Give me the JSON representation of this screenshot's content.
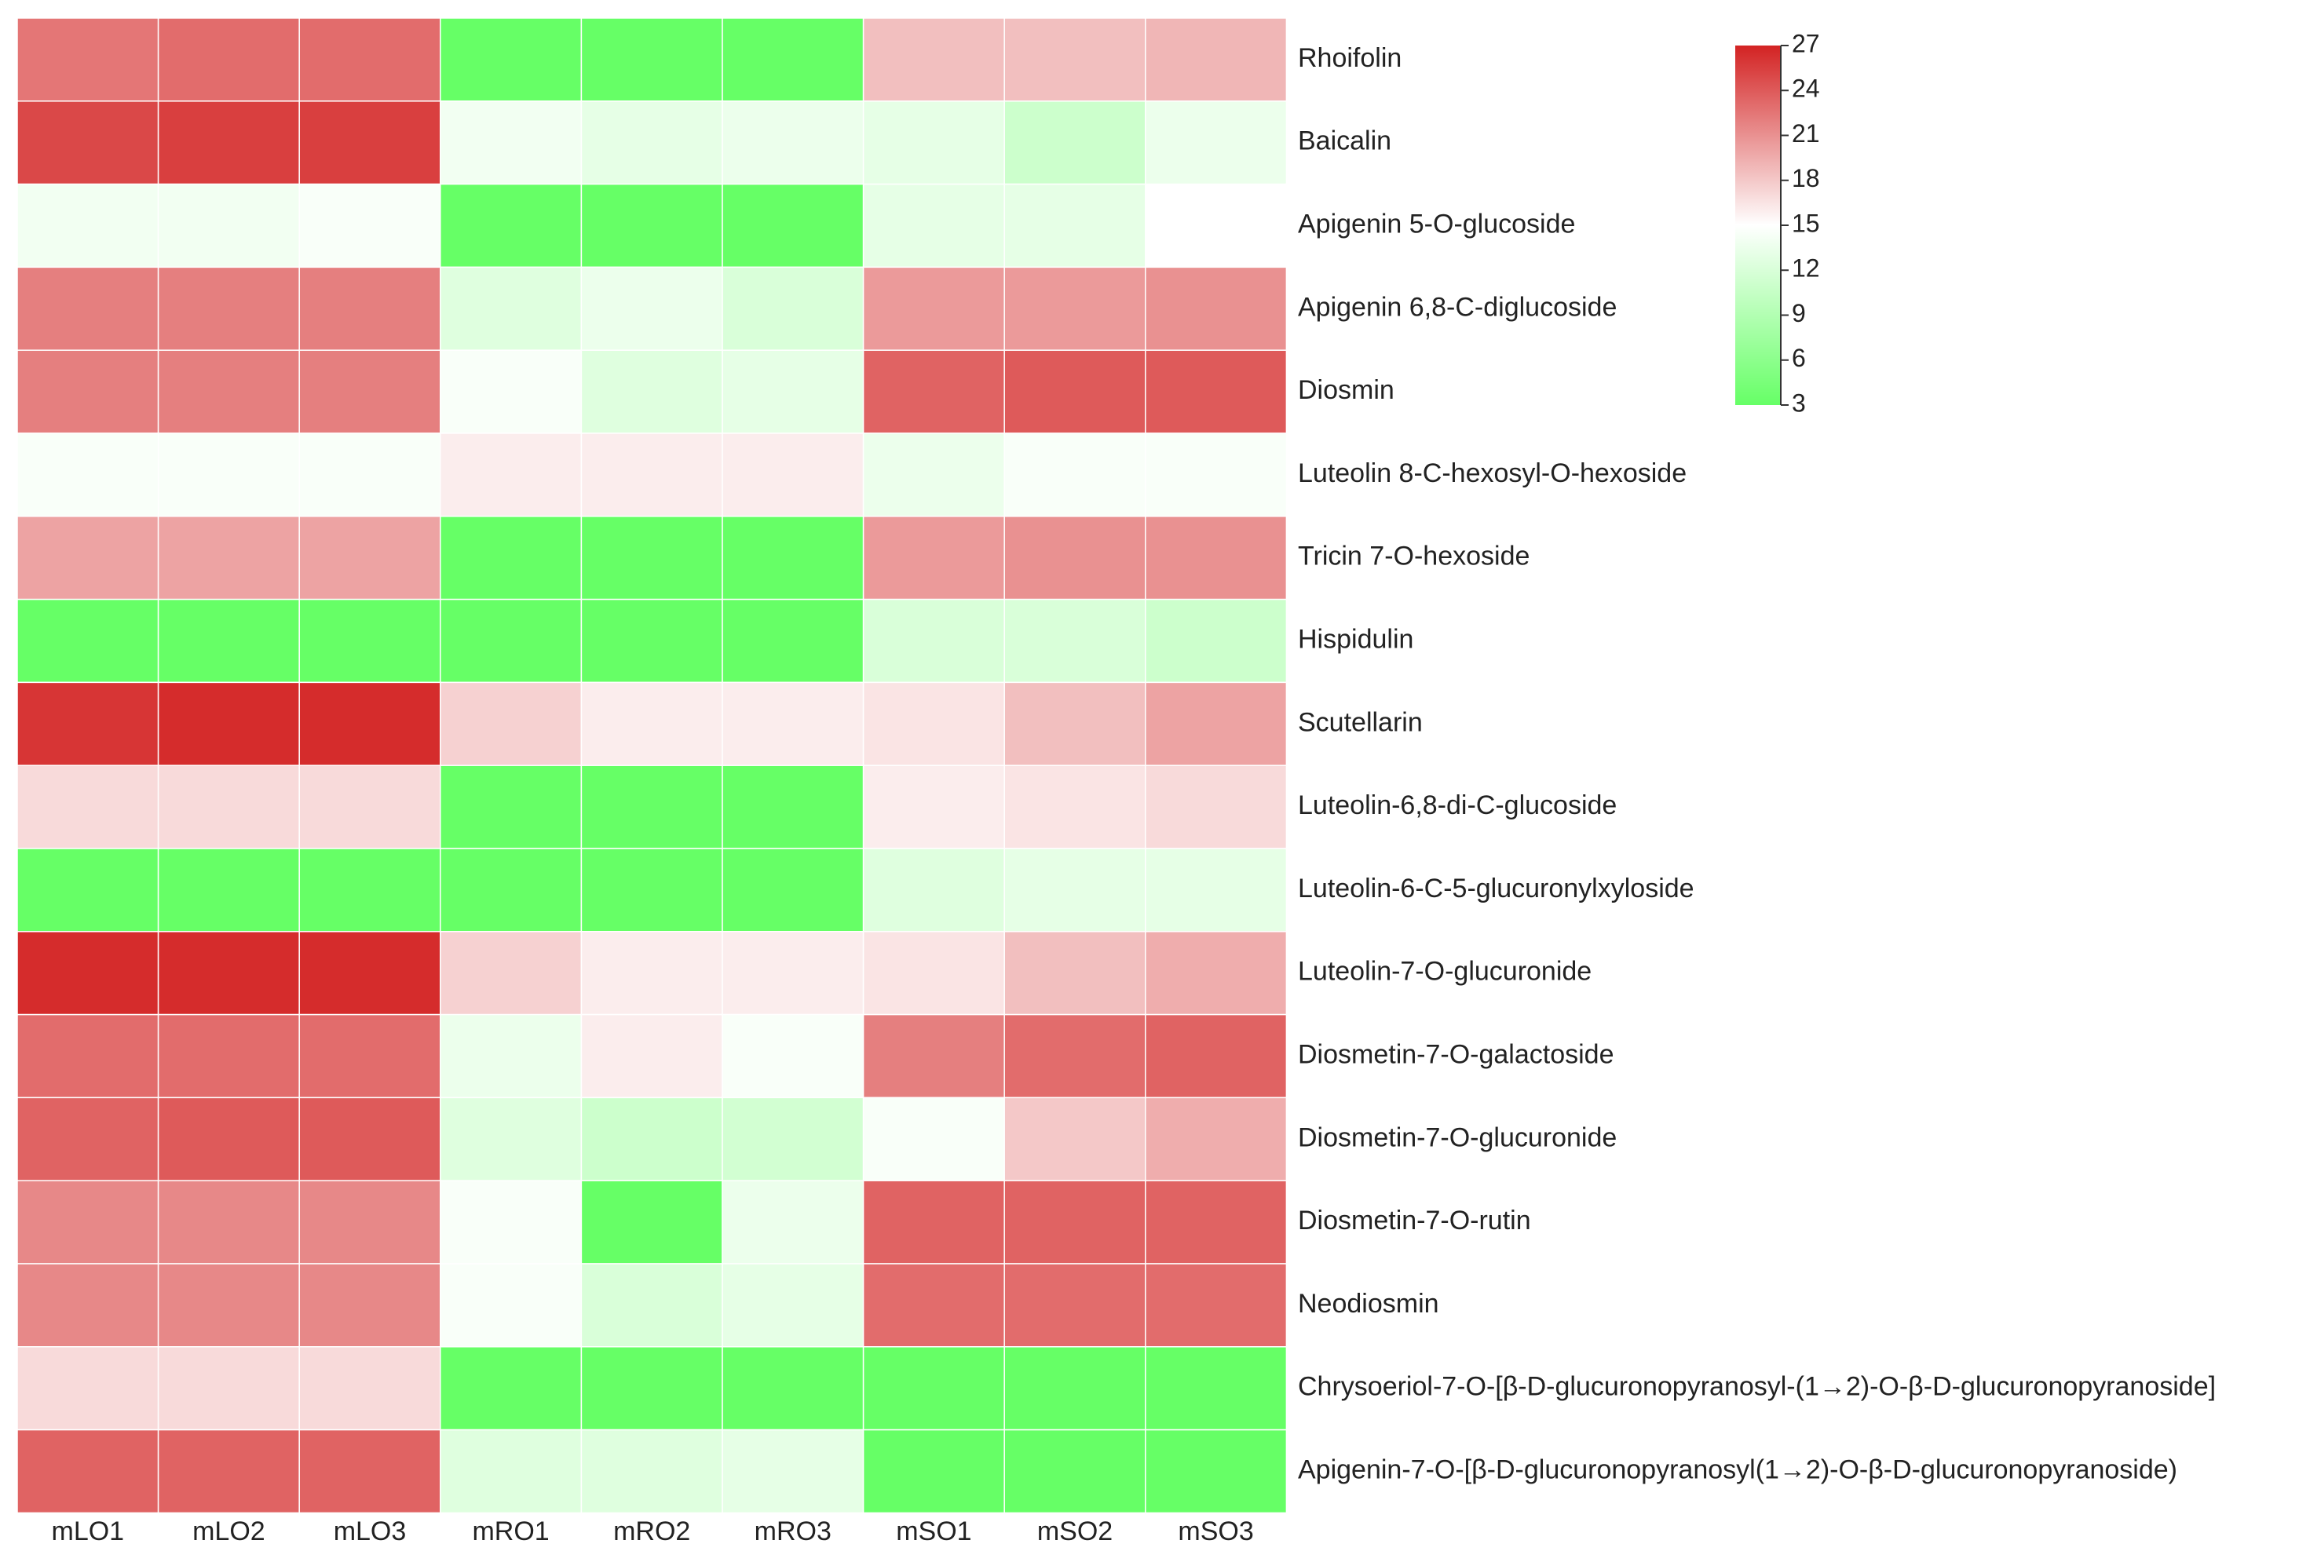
{
  "chart_data": {
    "type": "heatmap",
    "title": "",
    "columns": [
      "mLO1",
      "mLO2",
      "mLO3",
      "mRO1",
      "mRO2",
      "mRO3",
      "mSO1",
      "mSO2",
      "mSO3"
    ],
    "rows": [
      "Rhoifolin",
      "Baicalin",
      "Apigenin 5-O-glucoside",
      "Apigenin 6,8-C-diglucoside",
      "Diosmin",
      "Luteolin 8-C-hexosyl-O-hexoside",
      "Tricin 7-O-hexoside",
      "Hispidulin",
      "Scutellarin",
      "Luteolin-6,8-di-C-glucoside",
      "Luteolin-6-C-5-glucuronylxyloside",
      "Luteolin-7-O-glucuronide",
      "Diosmetin-7-O-galactoside",
      "Diosmetin-7-O-glucuronide",
      "Diosmetin-7-O-rutin",
      "Neodiosmin",
      "Chrysoeriol-7-O-[β-D-glucuronopyranosyl-(1→2)-O-β-D-glucuronopyranoside]",
      "Apigenin-7-O-[β-D-glucuronopyranosyl(1→2)-O-β-D-glucuronopyranoside)"
    ],
    "values": [
      [
        22.5,
        23.0,
        23.0,
        3,
        3,
        3,
        18.5,
        18.5,
        19.0
      ],
      [
        25.0,
        25.5,
        25.5,
        14.0,
        13.0,
        13.5,
        13.0,
        11.0,
        13.5
      ],
      [
        14.0,
        14.0,
        14.5,
        3,
        3,
        3,
        13.0,
        13.0,
        15.0
      ],
      [
        22.0,
        22.0,
        22.0,
        12.5,
        13.5,
        12.0,
        20.5,
        20.5,
        21.0
      ],
      [
        22.0,
        22.0,
        22.0,
        14.5,
        12.5,
        13.0,
        23.5,
        24.0,
        24.0
      ],
      [
        14.5,
        14.5,
        14.5,
        16.0,
        16.0,
        16.0,
        13.5,
        14.5,
        14.5
      ],
      [
        20.0,
        20.0,
        20.0,
        3,
        3,
        3,
        20.5,
        21.0,
        21.0
      ],
      [
        3,
        3,
        3,
        3,
        3,
        3,
        12.0,
        12.0,
        11.0
      ],
      [
        26.0,
        26.5,
        26.5,
        17.5,
        16.0,
        16.0,
        16.5,
        18.5,
        20.0
      ],
      [
        17.0,
        17.0,
        17.0,
        3,
        3,
        3,
        16.0,
        16.5,
        17.0
      ],
      [
        3,
        3,
        3,
        3,
        3,
        3,
        12.5,
        13.0,
        13.0
      ],
      [
        26.5,
        26.5,
        26.5,
        17.5,
        16.0,
        16.0,
        16.5,
        18.5,
        19.5
      ],
      [
        23.0,
        23.0,
        23.0,
        13.5,
        16.0,
        14.5,
        22.0,
        23.0,
        23.5
      ],
      [
        23.5,
        24.0,
        24.0,
        12.5,
        11.0,
        11.5,
        14.5,
        18.0,
        19.5
      ],
      [
        21.5,
        21.5,
        21.5,
        14.5,
        3,
        13.5,
        23.5,
        23.5,
        23.5
      ],
      [
        21.5,
        21.5,
        21.5,
        14.5,
        12.0,
        13.0,
        23.0,
        23.0,
        23.0
      ],
      [
        17.0,
        17.0,
        17.0,
        3,
        3,
        3,
        3,
        3,
        3
      ],
      [
        23.5,
        23.5,
        23.5,
        12.5,
        12.5,
        13.0,
        3,
        3,
        3
      ]
    ],
    "colorbar": {
      "min": 3,
      "max": 27,
      "ticks": [
        "27",
        "24",
        "21",
        "18",
        "15",
        "12",
        "9",
        "6",
        "3"
      ],
      "color_low": "#66ff66",
      "color_mid": "#ffffff",
      "color_high": "#d32323",
      "midpoint": 15,
      "placement": "top-right"
    }
  }
}
